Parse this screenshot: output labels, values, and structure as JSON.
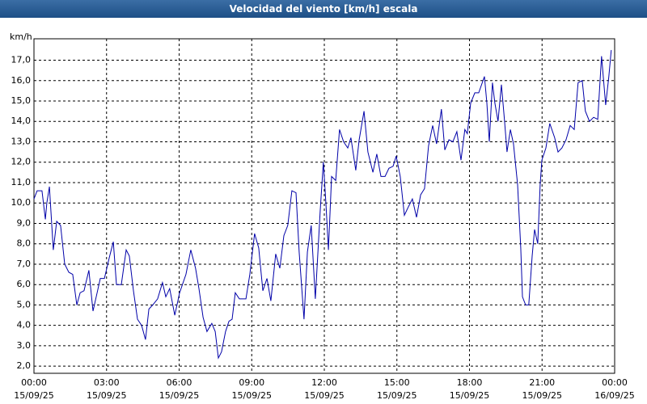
{
  "chart_data": {
    "type": "line",
    "title": "Velocidad del viento [km/h] escala",
    "y_label": "km/h",
    "xlim": [
      0,
      24
    ],
    "ylim": [
      1.65,
      18.05
    ],
    "grid": true,
    "color": "#0000a8",
    "xticks": [
      {
        "value": 0,
        "label": "00:00",
        "date": "15/09/25"
      },
      {
        "value": 3,
        "label": "03:00",
        "date": "15/09/25"
      },
      {
        "value": 6,
        "label": "06:00",
        "date": "15/09/25"
      },
      {
        "value": 9,
        "label": "09:00",
        "date": "15/09/25"
      },
      {
        "value": 12,
        "label": "12:00",
        "date": "15/09/25"
      },
      {
        "value": 15,
        "label": "15:00",
        "date": "15/09/25"
      },
      {
        "value": 18,
        "label": "18:00",
        "date": "15/09/25"
      },
      {
        "value": 21,
        "label": "21:00",
        "date": "15/09/25"
      },
      {
        "value": 24,
        "label": "00:00",
        "date": "16/09/25"
      }
    ],
    "yticks": [
      {
        "value": 2,
        "label": "2,0"
      },
      {
        "value": 3,
        "label": "3,0"
      },
      {
        "value": 4,
        "label": "4,0"
      },
      {
        "value": 5,
        "label": "5,0"
      },
      {
        "value": 6,
        "label": "6,0"
      },
      {
        "value": 7,
        "label": "7,0"
      },
      {
        "value": 8,
        "label": "8,0"
      },
      {
        "value": 9,
        "label": "9,0"
      },
      {
        "value": 10,
        "label": "10,0"
      },
      {
        "value": 11,
        "label": "11,0"
      },
      {
        "value": 12,
        "label": "12,0"
      },
      {
        "value": 13,
        "label": "13,0"
      },
      {
        "value": 14,
        "label": "14,0"
      },
      {
        "value": 15,
        "label": "15,0"
      },
      {
        "value": 16,
        "label": "16,0"
      },
      {
        "value": 17,
        "label": "17,0"
      }
    ],
    "x": [
      0,
      0.13,
      0.33,
      0.47,
      0.53,
      0.64,
      0.8,
      0.94,
      1.1,
      1.27,
      1.44,
      1.6,
      1.77,
      1.91,
      2.07,
      2.27,
      2.44,
      2.61,
      2.74,
      2.91,
      3.11,
      3.28,
      3.41,
      3.61,
      3.81,
      3.94,
      4.11,
      4.28,
      4.45,
      4.61,
      4.75,
      4.91,
      5.11,
      5.31,
      5.45,
      5.61,
      5.82,
      6.02,
      6.28,
      6.48,
      6.68,
      6.82,
      6.99,
      7.15,
      7.35,
      7.49,
      7.62,
      7.75,
      7.92,
      8.06,
      8.19,
      8.32,
      8.49,
      8.76,
      8.92,
      9.12,
      9.29,
      9.46,
      9.63,
      9.79,
      9.99,
      10.16,
      10.33,
      10.49,
      10.66,
      10.83,
      10.96,
      11.16,
      11.3,
      11.46,
      11.63,
      11.83,
      11.96,
      12.07,
      12.17,
      12.3,
      12.47,
      12.63,
      12.8,
      12.97,
      13.1,
      13.3,
      13.44,
      13.64,
      13.8,
      14.01,
      14.17,
      14.34,
      14.51,
      14.67,
      14.84,
      14.97,
      15.14,
      15.31,
      15.47,
      15.64,
      15.81,
      15.98,
      16.14,
      16.31,
      16.48,
      16.64,
      16.84,
      16.98,
      17.15,
      17.31,
      17.48,
      17.65,
      17.81,
      17.91,
      18.05,
      18.22,
      18.38,
      18.62,
      18.72,
      18.82,
      18.95,
      19.05,
      19.18,
      19.32,
      19.45,
      19.55,
      19.69,
      19.82,
      19.99,
      20.12,
      20.19,
      20.32,
      20.45,
      20.59,
      20.69,
      20.82,
      20.92,
      20.99,
      21.16,
      21.32,
      21.52,
      21.66,
      21.82,
      21.99,
      22.16,
      22.33,
      22.49,
      22.66,
      22.79,
      22.96,
      23.13,
      23.3,
      23.46,
      23.63,
      23.76,
      23.86
    ],
    "values": [
      10.2,
      10.6,
      10.6,
      9.2,
      10.0,
      10.8,
      7.7,
      9.1,
      8.9,
      7.0,
      6.6,
      6.5,
      5.0,
      5.6,
      5.7,
      6.7,
      4.7,
      5.6,
      6.3,
      6.3,
      7.3,
      8.1,
      6.0,
      6.0,
      7.7,
      7.4,
      5.7,
      4.3,
      4.0,
      3.3,
      4.8,
      5.0,
      5.3,
      6.1,
      5.4,
      5.8,
      4.5,
      5.6,
      6.5,
      7.7,
      6.8,
      5.8,
      4.4,
      3.7,
      4.1,
      3.7,
      2.4,
      2.7,
      3.7,
      4.2,
      4.3,
      5.6,
      5.3,
      5.3,
      6.5,
      8.5,
      7.8,
      5.7,
      6.3,
      5.2,
      7.5,
      6.8,
      8.4,
      8.9,
      10.6,
      10.5,
      7.6,
      4.3,
      7.6,
      8.9,
      5.3,
      9.6,
      12.0,
      9.9,
      7.7,
      11.3,
      11.1,
      13.6,
      13.0,
      12.7,
      13.2,
      11.6,
      13.1,
      14.5,
      12.5,
      11.5,
      12.4,
      11.3,
      11.3,
      11.7,
      11.8,
      12.3,
      11.3,
      9.4,
      9.8,
      10.2,
      9.3,
      10.4,
      10.7,
      12.8,
      13.8,
      12.9,
      14.6,
      12.6,
      13.1,
      13.0,
      13.5,
      12.1,
      13.6,
      13.4,
      14.9,
      15.4,
      15.4,
      16.2,
      14.9,
      13.0,
      15.9,
      14.9,
      14.0,
      15.8,
      14.0,
      12.5,
      13.6,
      12.9,
      10.9,
      7.8,
      5.4,
      5.0,
      5.0,
      7.4,
      8.7,
      8.0,
      10.9,
      12.1,
      12.7,
      13.9,
      13.2,
      12.5,
      12.7,
      13.1,
      13.8,
      13.6,
      15.9,
      16.0,
      14.5,
      14.0,
      14.2,
      14.1,
      17.2,
      14.8,
      16.2,
      17.5
    ]
  }
}
